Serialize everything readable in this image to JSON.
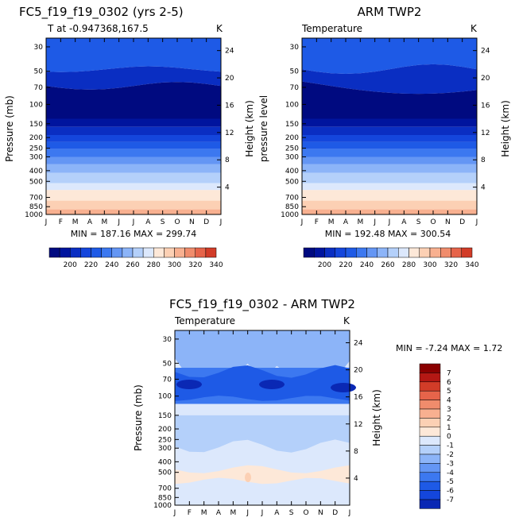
{
  "chart_data": [
    {
      "type": "contour",
      "title": "FC5_f19_f19_0302 (yrs 2-5)",
      "subtitle_left": "T at -0.947368,167.5",
      "subtitle_right": "K",
      "ylabel": "Pressure (mb)",
      "ylabel_right": "Height (km)",
      "stats": "MIN = 187.16 MAX = 299.74",
      "months": [
        "J",
        "F",
        "M",
        "A",
        "M",
        "J",
        "J",
        "A",
        "S",
        "O",
        "N",
        "D",
        "J"
      ],
      "pressure_ticks": [
        30,
        50,
        70,
        100,
        150,
        200,
        250,
        300,
        400,
        500,
        700,
        850,
        1000
      ],
      "height_ticks": [
        4,
        8,
        12,
        16,
        20,
        24
      ],
      "ylim_mb": [
        25,
        1000
      ],
      "levels": [
        200,
        210,
        220,
        230,
        240,
        250,
        260,
        270,
        280,
        290,
        300,
        310,
        320,
        330,
        340
      ],
      "colorbar_labels": [
        "200",
        "220",
        "240",
        "260",
        "280",
        "300",
        "320",
        "340"
      ]
    },
    {
      "type": "contour",
      "title": "ARM TWP2",
      "subtitle_left": "Temperature",
      "subtitle_right": "K",
      "ylabel": "pressure level",
      "ylabel_right": "Height (km)",
      "stats": "MIN = 192.48 MAX = 300.54",
      "months": [
        "J",
        "F",
        "M",
        "A",
        "M",
        "J",
        "J",
        "A",
        "S",
        "O",
        "N",
        "D",
        "J"
      ],
      "pressure_ticks": [
        30,
        50,
        70,
        100,
        150,
        200,
        250,
        300,
        400,
        500,
        700,
        850,
        1000
      ],
      "height_ticks": [
        4,
        8,
        12,
        16,
        20,
        24
      ],
      "ylim_mb": [
        25,
        1000
      ],
      "levels": [
        200,
        210,
        220,
        230,
        240,
        250,
        260,
        270,
        280,
        290,
        300,
        310,
        320,
        330,
        340
      ],
      "colorbar_labels": [
        "200",
        "220",
        "240",
        "260",
        "280",
        "300",
        "320",
        "340"
      ]
    },
    {
      "type": "contour-difference",
      "title": "FC5_f19_f19_0302 - ARM TWP2",
      "subtitle_left": "Temperature",
      "subtitle_right": "K",
      "ylabel": "Pressure (mb)",
      "ylabel_right": "Height (km)",
      "stats": "MIN =   -7.24 MAX =    1.72",
      "months": [
        "J",
        "F",
        "M",
        "A",
        "M",
        "J",
        "J",
        "A",
        "S",
        "O",
        "N",
        "D",
        "J"
      ],
      "pressure_ticks": [
        30,
        50,
        70,
        100,
        150,
        200,
        250,
        300,
        400,
        500,
        700,
        850,
        1000
      ],
      "height_ticks": [
        4,
        8,
        12,
        16,
        20,
        24
      ],
      "ylim_mb": [
        25,
        1000
      ],
      "levels": [
        "7",
        "6",
        "5",
        "4",
        "3",
        "2",
        "1",
        "0",
        "-1",
        "-2",
        "-3",
        "-4",
        "-5",
        "-6",
        "-7"
      ]
    }
  ],
  "colors": {
    "abs_scale": [
      "#000a80",
      "#00149e",
      "#0a2ec2",
      "#1446dc",
      "#1e5ae6",
      "#3c78f0",
      "#6496f4",
      "#8cb4f8",
      "#b4d0fa",
      "#dce8fc",
      "#fde8d8",
      "#fcd0b4",
      "#f8b090",
      "#f08c6c",
      "#e6644a",
      "#d23c28",
      "#b41814",
      "#8a0000"
    ],
    "diff_scale": [
      "#000a80",
      "#0a28b4",
      "#1446dc",
      "#1e5ae6",
      "#3c78f0",
      "#6496f4",
      "#8cb4f8",
      "#b4d0fa",
      "#dce8fc",
      "#fde8d8",
      "#fcd0b4",
      "#f8b090",
      "#f08c6c",
      "#e6644a",
      "#d23c28",
      "#b41814",
      "#8a0000"
    ]
  }
}
